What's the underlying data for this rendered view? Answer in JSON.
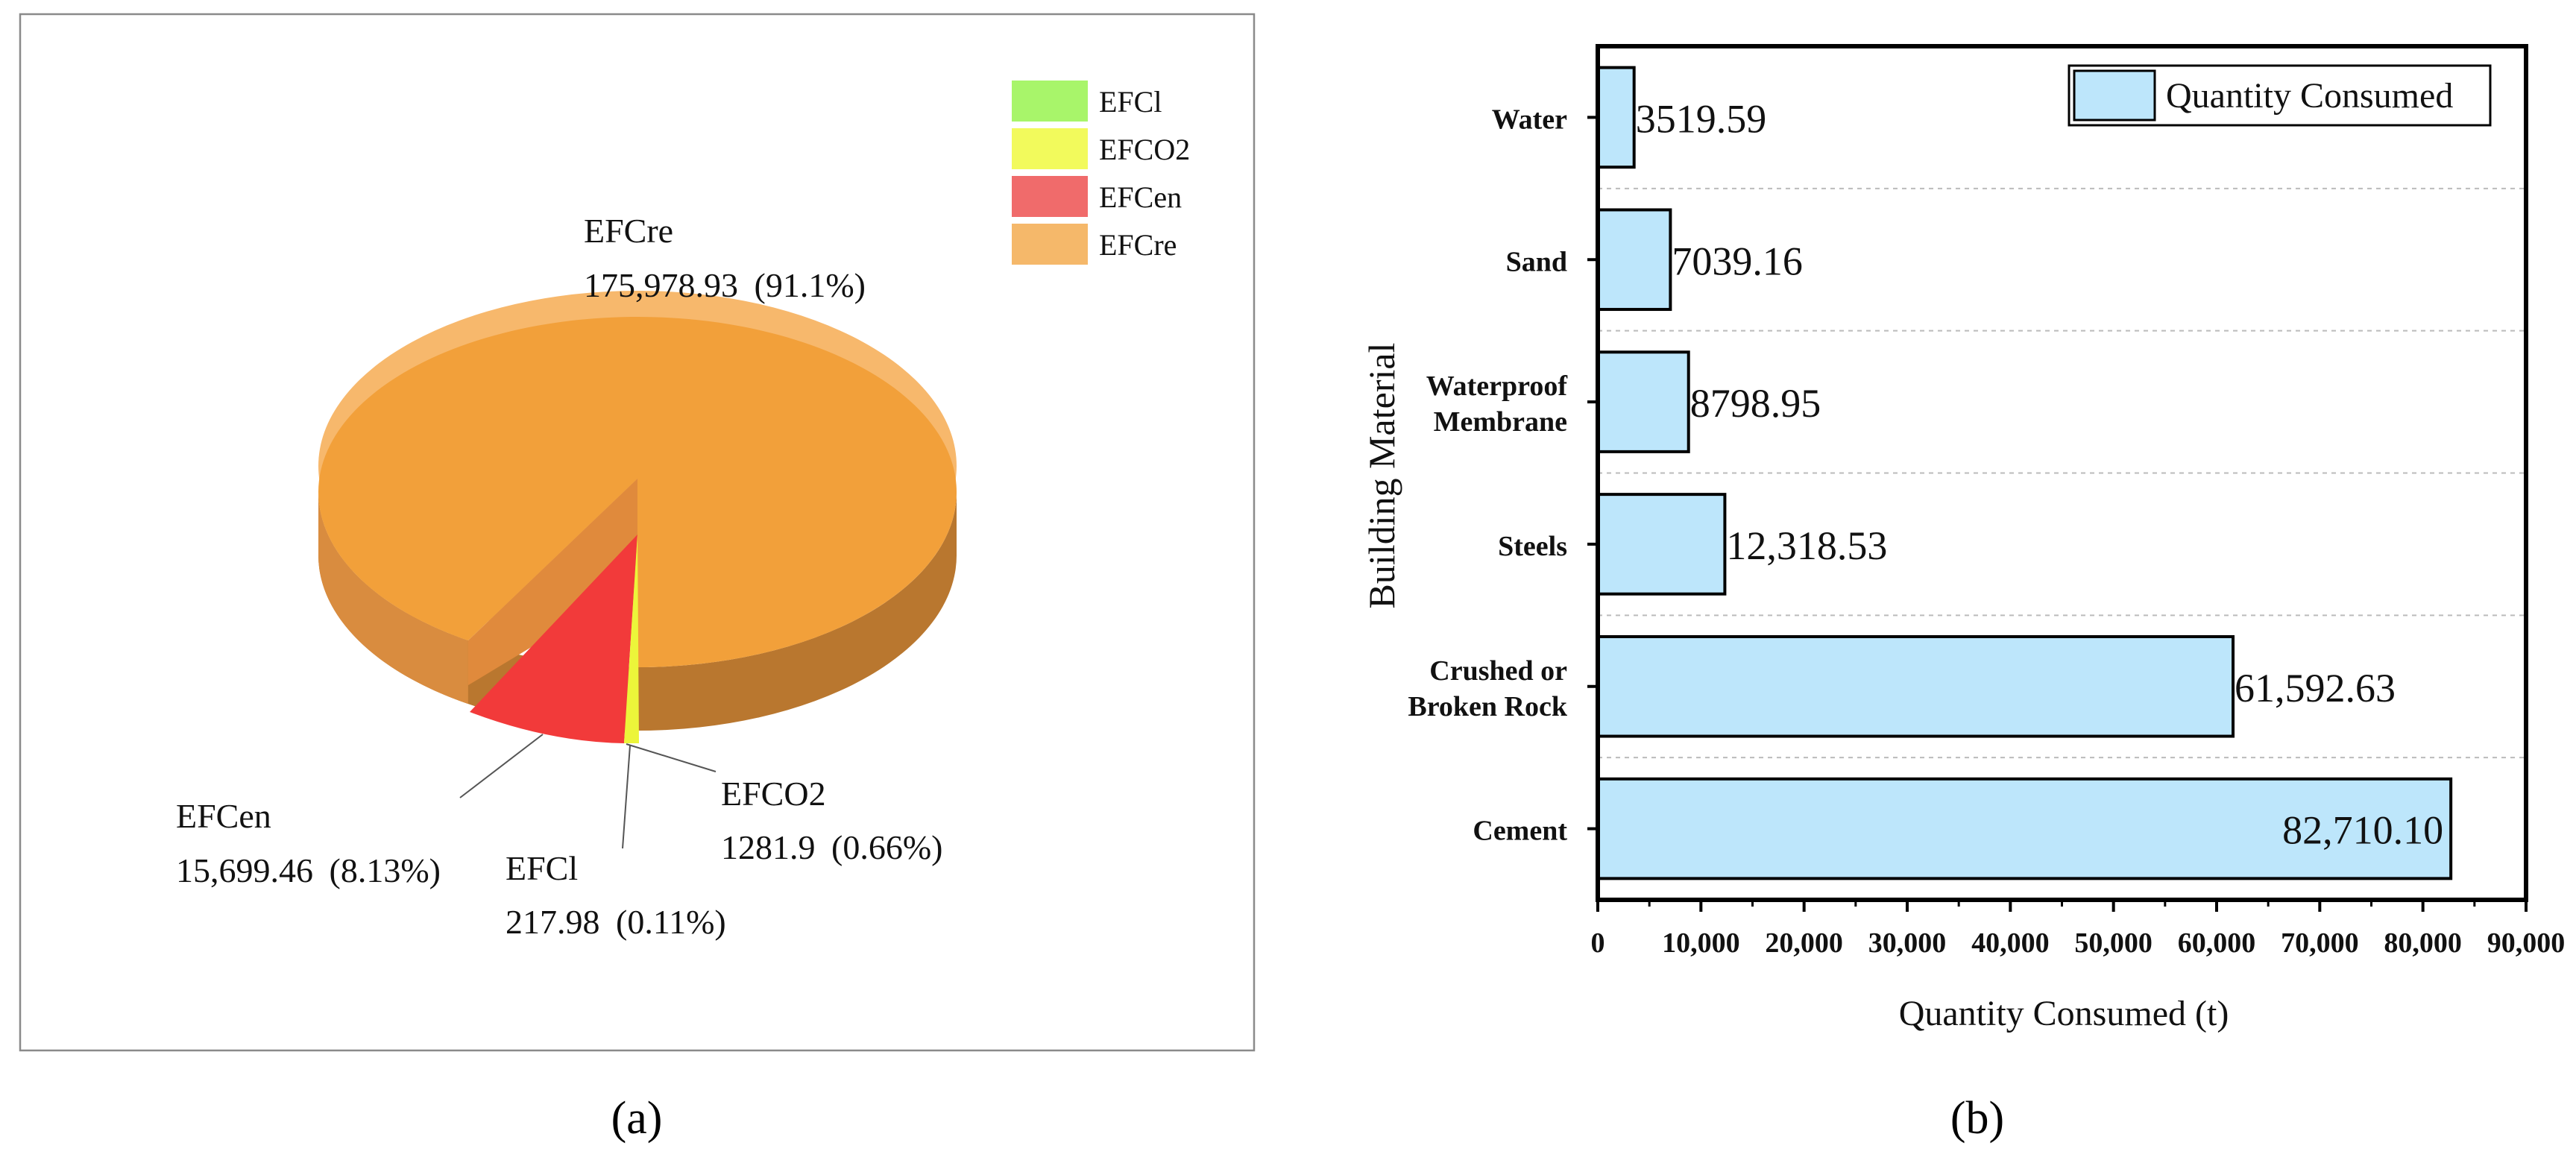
{
  "colors": {
    "efcl": "#a8f56a",
    "efco2": "#f2fa5c",
    "efcen": "#f06b6b",
    "efcre": "#f5b86a",
    "pie_top_main": "#f2a03a",
    "pie_top_rim": "#f7b86c",
    "pie_side_main": "#b9772f",
    "pie_side_light": "#d98c3f",
    "pie_cut": "#e08a3c",
    "slice_efcen": "#f23a3a",
    "slice_efco2": "#ecf53a",
    "bar_fill": "#bde6fb",
    "bar_stroke": "#000000",
    "grid": "#bbbbbb"
  },
  "chart_data": [
    {
      "type": "pie",
      "panel_label": "(a)",
      "legend": [
        "EFCl",
        "EFCO2",
        "EFCen",
        "EFCre"
      ],
      "slices": [
        {
          "name": "EFCre",
          "value": 175978.93,
          "value_label": "175,978.93",
          "percent_label": "(91.1%)"
        },
        {
          "name": "EFCen",
          "value": 15699.46,
          "value_label": "15,699.46",
          "percent_label": "(8.13%)"
        },
        {
          "name": "EFCO2",
          "value": 1281.9,
          "value_label": "1281.9",
          "percent_label": "(0.66%)"
        },
        {
          "name": "EFCl",
          "value": 217.98,
          "value_label": "217.98",
          "percent_label": "(0.11%)"
        }
      ]
    },
    {
      "type": "bar",
      "orientation": "horizontal",
      "panel_label": "(b)",
      "ylabel": "Building Material",
      "xlabel": "Quantity Consumed (t)",
      "legend": [
        "Quantity Consumed"
      ],
      "xlim": [
        0,
        90000
      ],
      "x_ticks": [
        0,
        10000,
        20000,
        30000,
        40000,
        50000,
        60000,
        70000,
        80000,
        90000
      ],
      "x_tick_labels": [
        "0",
        "10,000",
        "20,000",
        "30,000",
        "40,000",
        "50,000",
        "60,000",
        "70,000",
        "80,000",
        "90,000"
      ],
      "grid": true,
      "categories": [
        {
          "label": [
            "Water"
          ],
          "value": 3519.59,
          "value_label": "3519.59"
        },
        {
          "label": [
            "Sand"
          ],
          "value": 7039.16,
          "value_label": "7039.16"
        },
        {
          "label": [
            "Waterproof",
            "Membrane"
          ],
          "value": 8798.95,
          "value_label": "8798.95"
        },
        {
          "label": [
            "Steels"
          ],
          "value": 12318.53,
          "value_label": "12,318.53"
        },
        {
          "label": [
            "Crushed or",
            "Broken Rock"
          ],
          "value": 61592.63,
          "value_label": "61,592.63"
        },
        {
          "label": [
            "Cement"
          ],
          "value": 82710.1,
          "value_label": "82,710.10"
        }
      ]
    }
  ]
}
